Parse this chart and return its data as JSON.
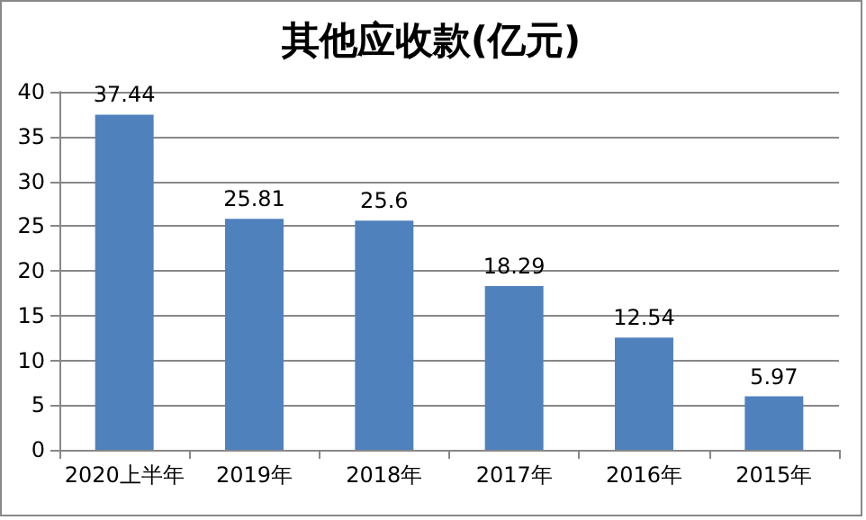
{
  "chart_data": {
    "type": "bar",
    "title": "其他应收款(亿元)",
    "categories": [
      "2020上半年",
      "2019年",
      "2018年",
      "2017年",
      "2016年",
      "2015年"
    ],
    "values": [
      37.44,
      25.81,
      25.6,
      18.29,
      12.54,
      5.97
    ],
    "color": "#4f81bd",
    "ylim": [
      0,
      40
    ],
    "yticks": [
      0,
      5,
      10,
      15,
      20,
      25,
      30,
      35,
      40
    ],
    "grid": "y",
    "data_labels": true
  }
}
